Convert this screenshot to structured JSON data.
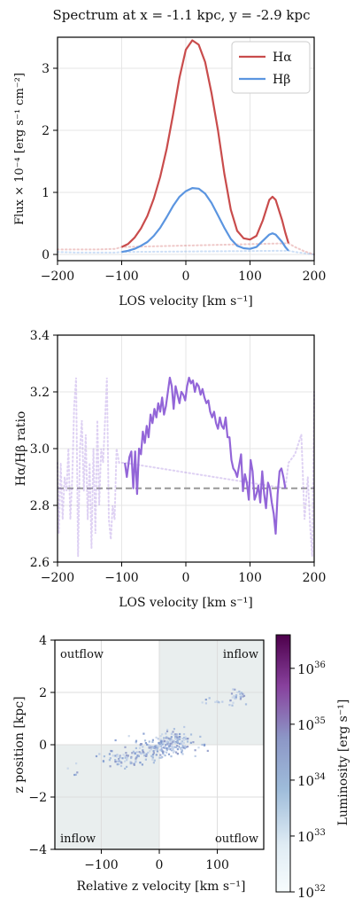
{
  "figure": {
    "title": "Spectrum at x = -1.1 kpc, y = -2.9 kpc"
  },
  "chart_data": [
    {
      "type": "line",
      "xlabel": "LOS velocity [km s⁻¹]",
      "ylabel": "Flux × 10⁻⁴ [erg s⁻¹ cm⁻²]",
      "xlim": [
        -200,
        200
      ],
      "ylim": [
        -0.1,
        3.5
      ],
      "xticks": [
        "−200",
        "−100",
        "0",
        "100",
        "200"
      ],
      "yticks": [
        "0",
        "1",
        "2",
        "3"
      ],
      "legend_position": "top-right",
      "grid": true,
      "series": [
        {
          "name": "Hα",
          "color": "#c94c4c",
          "solid": [
            [
              -100,
              0.12
            ],
            [
              -90,
              0.17
            ],
            [
              -80,
              0.27
            ],
            [
              -70,
              0.42
            ],
            [
              -60,
              0.62
            ],
            [
              -50,
              0.9
            ],
            [
              -40,
              1.25
            ],
            [
              -30,
              1.7
            ],
            [
              -20,
              2.25
            ],
            [
              -10,
              2.85
            ],
            [
              0,
              3.3
            ],
            [
              10,
              3.45
            ],
            [
              20,
              3.38
            ],
            [
              30,
              3.1
            ],
            [
              40,
              2.6
            ],
            [
              50,
              2.0
            ],
            [
              60,
              1.3
            ],
            [
              70,
              0.72
            ],
            [
              80,
              0.38
            ],
            [
              90,
              0.26
            ],
            [
              100,
              0.24
            ],
            [
              110,
              0.3
            ],
            [
              120,
              0.55
            ],
            [
              130,
              0.88
            ],
            [
              135,
              0.93
            ],
            [
              140,
              0.88
            ],
            [
              150,
              0.55
            ],
            [
              155,
              0.35
            ],
            [
              160,
              0.18
            ]
          ],
          "dotted": [
            [
              -200,
              0.08
            ],
            [
              -170,
              0.08
            ],
            [
              -140,
              0.08
            ],
            [
              -110,
              0.09
            ],
            [
              -100,
              0.12
            ],
            [
              160,
              0.18
            ],
            [
              170,
              0.12
            ],
            [
              185,
              0.05
            ],
            [
              200,
              0.0
            ]
          ]
        },
        {
          "name": "Hβ",
          "color": "#5b95e0",
          "solid": [
            [
              -100,
              0.04
            ],
            [
              -90,
              0.06
            ],
            [
              -80,
              0.09
            ],
            [
              -70,
              0.14
            ],
            [
              -60,
              0.2
            ],
            [
              -50,
              0.3
            ],
            [
              -40,
              0.43
            ],
            [
              -30,
              0.6
            ],
            [
              -20,
              0.78
            ],
            [
              -10,
              0.93
            ],
            [
              0,
              1.02
            ],
            [
              10,
              1.07
            ],
            [
              20,
              1.06
            ],
            [
              30,
              0.98
            ],
            [
              40,
              0.83
            ],
            [
              50,
              0.63
            ],
            [
              60,
              0.43
            ],
            [
              70,
              0.25
            ],
            [
              80,
              0.14
            ],
            [
              90,
              0.1
            ],
            [
              100,
              0.09
            ],
            [
              110,
              0.12
            ],
            [
              120,
              0.22
            ],
            [
              130,
              0.32
            ],
            [
              135,
              0.34
            ],
            [
              140,
              0.32
            ],
            [
              150,
              0.2
            ],
            [
              155,
              0.12
            ],
            [
              160,
              0.06
            ]
          ],
          "dotted": [
            [
              -200,
              0.04
            ],
            [
              -170,
              0.03
            ],
            [
              -140,
              0.03
            ],
            [
              -110,
              0.03
            ],
            [
              -100,
              0.04
            ],
            [
              160,
              0.06
            ],
            [
              170,
              0.04
            ],
            [
              185,
              0.02
            ],
            [
              200,
              0.0
            ]
          ]
        }
      ]
    },
    {
      "type": "line",
      "xlabel": "LOS velocity [km s⁻¹]",
      "ylabel": "Hα/Hβ ratio",
      "xlim": [
        -200,
        200
      ],
      "ylim": [
        2.6,
        3.4
      ],
      "xticks": [
        "−200",
        "−100",
        "0",
        "100",
        "200"
      ],
      "yticks": [
        "2.6",
        "2.8",
        "3.0",
        "3.2",
        "3.4"
      ],
      "grid": true,
      "reference_line": {
        "y": 2.86,
        "color": "#999999",
        "style": "dashed"
      },
      "series": [
        {
          "color": "#9366d8",
          "solid": [
            [
              -95,
              2.95
            ],
            [
              -92,
              2.9
            ],
            [
              -88,
              2.97
            ],
            [
              -85,
              2.99
            ],
            [
              -82,
              2.86
            ],
            [
              -79,
              2.99
            ],
            [
              -76,
              2.84
            ],
            [
              -73,
              3.0
            ],
            [
              -70,
              2.98
            ],
            [
              -67,
              3.06
            ],
            [
              -64,
              3.02
            ],
            [
              -61,
              3.08
            ],
            [
              -58,
              3.04
            ],
            [
              -55,
              3.12
            ],
            [
              -52,
              3.09
            ],
            [
              -49,
              3.14
            ],
            [
              -46,
              3.11
            ],
            [
              -43,
              3.16
            ],
            [
              -40,
              3.13
            ],
            [
              -37,
              3.18
            ],
            [
              -34,
              3.12
            ],
            [
              -31,
              3.15
            ],
            [
              -28,
              3.2
            ],
            [
              -25,
              3.25
            ],
            [
              -22,
              3.22
            ],
            [
              -19,
              3.14
            ],
            [
              -16,
              3.22
            ],
            [
              -13,
              3.19
            ],
            [
              -10,
              3.16
            ],
            [
              -7,
              3.2
            ],
            [
              -4,
              3.19
            ],
            [
              -1,
              3.17
            ],
            [
              2,
              3.22
            ],
            [
              5,
              3.25
            ],
            [
              8,
              3.23
            ],
            [
              11,
              3.24
            ],
            [
              14,
              3.2
            ],
            [
              17,
              3.23
            ],
            [
              20,
              3.22
            ],
            [
              23,
              3.19
            ],
            [
              26,
              3.21
            ],
            [
              29,
              3.18
            ],
            [
              32,
              3.16
            ],
            [
              35,
              3.17
            ],
            [
              38,
              3.13
            ],
            [
              41,
              3.11
            ],
            [
              44,
              3.13
            ],
            [
              47,
              3.09
            ],
            [
              50,
              3.07
            ],
            [
              53,
              3.11
            ],
            [
              56,
              3.08
            ],
            [
              59,
              3.07
            ],
            [
              62,
              3.11
            ],
            [
              65,
              3.04
            ],
            [
              68,
              3.04
            ],
            [
              71,
              2.96
            ],
            [
              74,
              2.93
            ],
            [
              77,
              2.92
            ],
            [
              80,
              2.9
            ],
            [
              83,
              2.94
            ],
            [
              86,
              2.98
            ],
            [
              89,
              2.85
            ],
            [
              92,
              2.91
            ],
            [
              95,
              2.88
            ],
            [
              98,
              2.82
            ],
            [
              101,
              2.96
            ],
            [
              104,
              2.92
            ],
            [
              107,
              2.82
            ],
            [
              110,
              2.84
            ],
            [
              113,
              2.87
            ],
            [
              116,
              2.81
            ],
            [
              119,
              2.92
            ],
            [
              122,
              2.84
            ],
            [
              125,
              2.79
            ],
            [
              128,
              2.88
            ],
            [
              131,
              2.86
            ],
            [
              134,
              2.81
            ],
            [
              137,
              2.77
            ],
            [
              140,
              2.7
            ],
            [
              143,
              2.84
            ],
            [
              146,
              2.92
            ],
            [
              149,
              2.93
            ],
            [
              152,
              2.9
            ],
            [
              155,
              2.86
            ]
          ],
          "dotted": [
            [
              -200,
              2.95
            ],
            [
              -198,
              2.7
            ],
            [
              -195,
              2.95
            ],
            [
              -192,
              2.75
            ],
            [
              -189,
              2.9
            ],
            [
              -186,
              2.85
            ],
            [
              -183,
              3.0
            ],
            [
              -180,
              2.75
            ],
            [
              -177,
              2.9
            ],
            [
              -174,
              3.15
            ],
            [
              -171,
              3.25
            ],
            [
              -168,
              2.62
            ],
            [
              -165,
              3.0
            ],
            [
              -162,
              3.1
            ],
            [
              -159,
              2.85
            ],
            [
              -156,
              3.05
            ],
            [
              -153,
              2.75
            ],
            [
              -150,
              2.95
            ],
            [
              -147,
              2.65
            ],
            [
              -144,
              3.0
            ],
            [
              -141,
              2.7
            ],
            [
              -138,
              3.1
            ],
            [
              -135,
              2.8
            ],
            [
              -132,
              3.0
            ],
            [
              -129,
              2.95
            ],
            [
              -126,
              3.1
            ],
            [
              -123,
              3.25
            ],
            [
              -120,
              2.75
            ],
            [
              -117,
              2.68
            ],
            [
              -114,
              2.8
            ],
            [
              -111,
              2.75
            ],
            [
              -108,
              3.0
            ],
            [
              -104,
              2.95
            ],
            [
              -100,
              2.95
            ],
            [
              -95,
              2.95
            ],
            [
              155,
              2.86
            ],
            [
              160,
              2.95
            ],
            [
              170,
              2.98
            ],
            [
              180,
              3.05
            ],
            [
              185,
              2.75
            ],
            [
              190,
              2.9
            ],
            [
              194,
              2.72
            ],
            [
              197,
              2.62
            ],
            [
              200,
              3.2
            ]
          ]
        }
      ]
    },
    {
      "type": "scatter",
      "xlabel": "Relative z velocity [km s⁻¹]",
      "ylabel": "z position [kpc]",
      "xlim": [
        -180,
        180
      ],
      "ylim": [
        -4,
        4
      ],
      "xticks": [
        "−100",
        "0",
        "100"
      ],
      "yticks": [
        "−4",
        "−2",
        "0",
        "2",
        "4"
      ],
      "quadrant_labels": [
        "outflow",
        "inflow",
        "inflow",
        "outflow"
      ],
      "colorbar": {
        "label": "Luminosity [erg s⁻¹]",
        "scale": "log",
        "min_exp": 32,
        "max_exp": 36.6,
        "tick_base": "10",
        "tick_exponents": [
          "32",
          "33",
          "34",
          "35",
          "36"
        ]
      },
      "clusters": [
        {
          "cx": 10,
          "cy": 0.0,
          "sx": 25,
          "sy": 0.18,
          "n": 160
        },
        {
          "cx": 25,
          "cy": 0.3,
          "sx": 16,
          "sy": 0.15,
          "n": 50
        },
        {
          "cx": -50,
          "cy": -0.4,
          "sx": 28,
          "sy": 0.18,
          "n": 70
        },
        {
          "cx": -70,
          "cy": -0.6,
          "sx": 18,
          "sy": 0.12,
          "n": 30
        },
        {
          "cx": 130,
          "cy": 1.9,
          "sx": 10,
          "sy": 0.12,
          "n": 30
        },
        {
          "cx": 90,
          "cy": 1.7,
          "sx": 15,
          "sy": 0.08,
          "n": 10
        },
        {
          "cx": -150,
          "cy": -1.0,
          "sx": 5,
          "sy": 0.1,
          "n": 4
        }
      ]
    }
  ]
}
